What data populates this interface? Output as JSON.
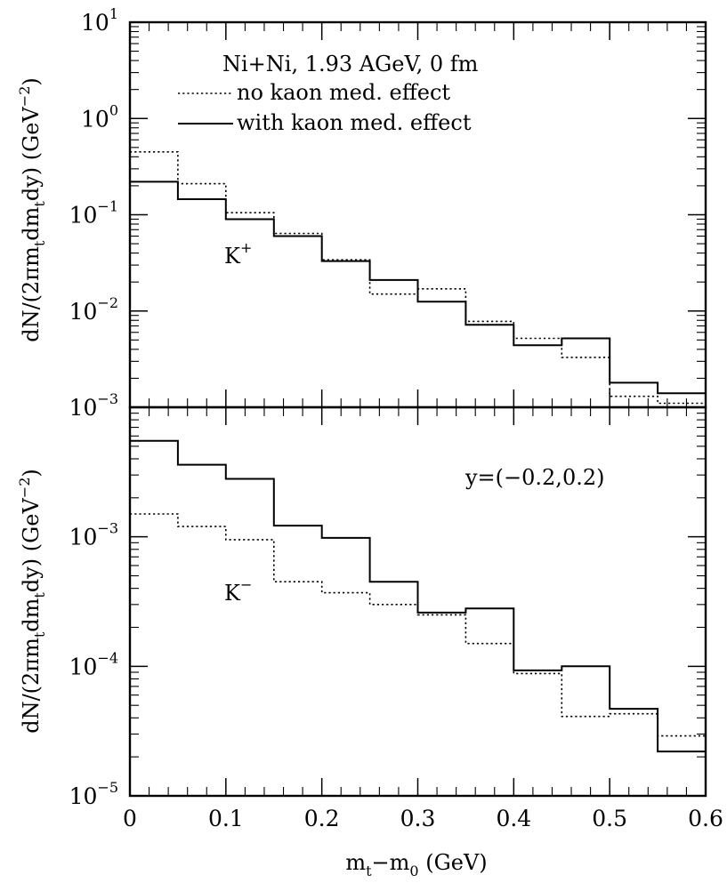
{
  "chart_data": [
    {
      "type": "line",
      "step": true,
      "log_y": true,
      "ylim": [
        0.001,
        10
      ],
      "xlim": [
        0,
        0.6
      ],
      "ylabel": "dN/(2πm_t dm_t dy) (GeV^-2)",
      "y_ticks": [
        {
          "value": 10,
          "label": "10",
          "sup": "1"
        },
        {
          "value": 1,
          "label": "10",
          "sup": "0"
        },
        {
          "value": 0.1,
          "label": "10",
          "sup": "−1"
        },
        {
          "value": 0.01,
          "label": "10",
          "sup": "−2"
        },
        {
          "value": 0.001,
          "label": "10",
          "sup": "−3"
        }
      ],
      "annotations": {
        "title": "Ni+Ni, 1.93 AGeV, 0 fm",
        "particle": "K",
        "particle_sup": "+"
      },
      "legend": {
        "placement": "top-right",
        "entries": [
          {
            "label": "no kaon med. effect",
            "style": "dotted"
          },
          {
            "label": "with kaon med. effect",
            "style": "solid"
          }
        ]
      },
      "bin_edges": [
        0,
        0.05,
        0.1,
        0.15,
        0.2,
        0.25,
        0.3,
        0.35,
        0.4,
        0.45,
        0.5,
        0.55,
        0.6
      ],
      "series": [
        {
          "name": "no kaon med. effect",
          "style": "dotted",
          "values": [
            0.45,
            0.21,
            0.105,
            0.064,
            0.034,
            0.015,
            0.017,
            0.0078,
            0.0052,
            0.0033,
            0.0013,
            0.0011
          ]
        },
        {
          "name": "with kaon med. effect",
          "style": "solid",
          "values": [
            0.22,
            0.145,
            0.09,
            0.06,
            0.033,
            0.021,
            0.0125,
            0.0072,
            0.0044,
            0.0052,
            0.0018,
            0.0014
          ]
        }
      ]
    },
    {
      "type": "line",
      "step": true,
      "log_y": true,
      "ylim": [
        1e-05,
        0.01
      ],
      "xlim": [
        0,
        0.6
      ],
      "ylabel": "dN/(2πm_t dm_t dy) (GeV^-2)",
      "xlabel": "m_t−m_0 (GeV)",
      "x_ticks": [
        "0",
        "0.1",
        "0.2",
        "0.3",
        "0.4",
        "0.5",
        "0.6"
      ],
      "y_ticks": [
        {
          "value": 0.001,
          "label": "10",
          "sup": "−3"
        },
        {
          "value": 0.0001,
          "label": "10",
          "sup": "−4"
        },
        {
          "value": 1e-05,
          "label": "10",
          "sup": "−5"
        }
      ],
      "annotations": {
        "rapidity": "y=(−0.2,0.2)",
        "particle": "K",
        "particle_sup": "−"
      },
      "bin_edges": [
        0,
        0.05,
        0.1,
        0.15,
        0.2,
        0.25,
        0.3,
        0.35,
        0.4,
        0.45,
        0.5,
        0.55,
        0.6
      ],
      "series": [
        {
          "name": "no kaon med. effect",
          "style": "dotted",
          "values": [
            0.0015,
            0.0012,
            0.00095,
            0.00045,
            0.00037,
            0.0003,
            0.00025,
            0.00015,
            8.8e-05,
            4.1e-05,
            4.3e-05,
            2.9e-05
          ]
        },
        {
          "name": "with kaon med. effect",
          "style": "solid",
          "values": [
            0.0055,
            0.0036,
            0.0028,
            0.00122,
            0.00098,
            0.00045,
            0.00026,
            0.00028,
            9.3e-05,
            0.0001,
            4.7e-05,
            2.2e-05
          ]
        }
      ]
    }
  ]
}
